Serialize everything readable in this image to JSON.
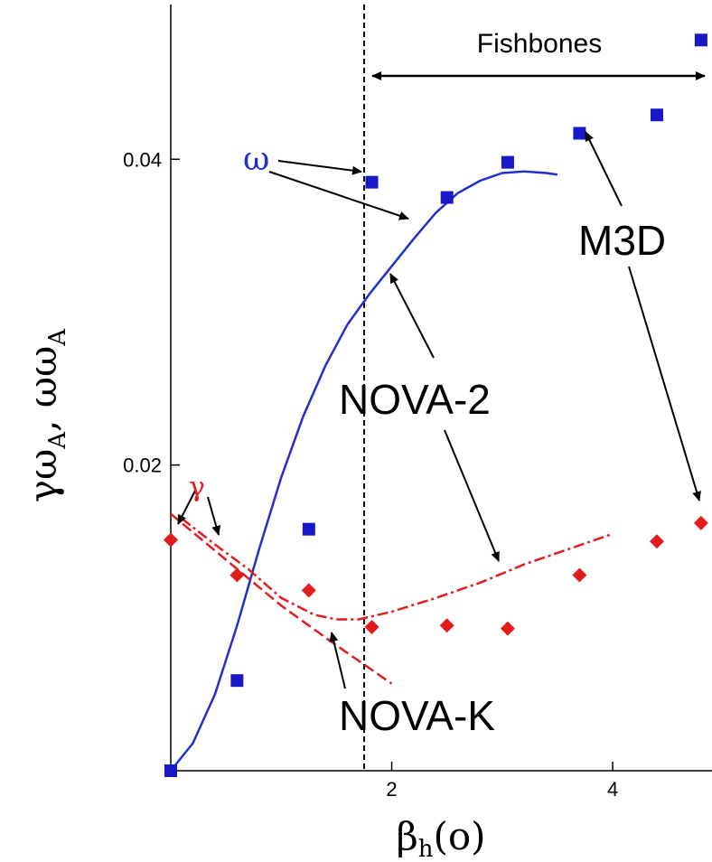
{
  "chart_data": {
    "type": "scatter",
    "xlabel": "β",
    "xlabel_sub": "h",
    "xlabel_suffix": "(o)",
    "ylabel_parts": [
      "γω",
      "A",
      ", ωω",
      "A"
    ],
    "xlim": [
      0,
      4.85
    ],
    "ylim": [
      0,
      0.049
    ],
    "xticks": [
      2,
      4
    ],
    "xtick_labels": [
      "2",
      "4"
    ],
    "yticks": [
      0.02,
      0.04
    ],
    "ytick_labels": [
      "0.02",
      "0.04"
    ],
    "vline_x": 1.75,
    "region_label": "Fishbones",
    "series": [
      {
        "name": "M3D",
        "kind": "omega",
        "marker": "square",
        "color": "#1818c8",
        "x": [
          0.0,
          0.6,
          1.25,
          1.82,
          2.5,
          3.05,
          3.7,
          4.4,
          4.8
        ],
        "y": [
          0.0,
          0.0059,
          0.0158,
          0.0385,
          0.0375,
          0.0398,
          0.0417,
          0.0429,
          0.0478
        ]
      },
      {
        "name": "M3D",
        "kind": "gamma",
        "marker": "diamond",
        "color": "#e21b1b",
        "x": [
          0.0,
          0.6,
          1.25,
          1.82,
          2.5,
          3.05,
          3.7,
          4.4,
          4.8
        ],
        "y": [
          0.0151,
          0.0128,
          0.0118,
          0.0094,
          0.0095,
          0.0093,
          0.0128,
          0.015,
          0.0162
        ]
      },
      {
        "name": "NOVA-2",
        "kind": "omega",
        "style": "solid",
        "color": "#1f2fd0",
        "x": [
          0.0,
          0.2,
          0.4,
          0.6,
          0.8,
          1.0,
          1.2,
          1.4,
          1.6,
          1.8,
          2.0,
          2.2,
          2.4,
          2.6,
          2.8,
          3.0,
          3.2,
          3.4,
          3.5
        ],
        "y": [
          0.0,
          0.0018,
          0.005,
          0.0095,
          0.0145,
          0.0192,
          0.0232,
          0.0265,
          0.0292,
          0.0312,
          0.033,
          0.0348,
          0.0365,
          0.0378,
          0.0386,
          0.0391,
          0.0392,
          0.0391,
          0.039
        ]
      },
      {
        "name": "NOVA-2",
        "kind": "gamma",
        "style": "dash-dot",
        "color": "#e21b1b",
        "x": [
          0.1,
          0.4,
          0.7,
          1.0,
          1.3,
          1.5,
          1.7,
          2.0,
          2.4,
          2.8,
          3.2,
          3.6,
          4.0
        ],
        "y": [
          0.0165,
          0.0148,
          0.0132,
          0.0113,
          0.0102,
          0.0099,
          0.0099,
          0.0104,
          0.0113,
          0.0123,
          0.0135,
          0.0145,
          0.0155
        ]
      },
      {
        "name": "NOVA-K",
        "kind": "gamma",
        "style": "dashed",
        "color": "#e21b1b",
        "x": [
          0.0,
          0.5,
          1.0,
          1.5,
          2.0
        ],
        "y": [
          0.0168,
          0.0138,
          0.0108,
          0.0082,
          0.0057
        ]
      }
    ],
    "annotations": [
      {
        "text": "ω",
        "kind": "symbol-omega"
      },
      {
        "text": "γ",
        "kind": "symbol-gamma"
      },
      {
        "text": "M3D",
        "kind": "label"
      },
      {
        "text": "NOVA-2",
        "kind": "label"
      },
      {
        "text": "NOVA-K",
        "kind": "label"
      }
    ]
  }
}
